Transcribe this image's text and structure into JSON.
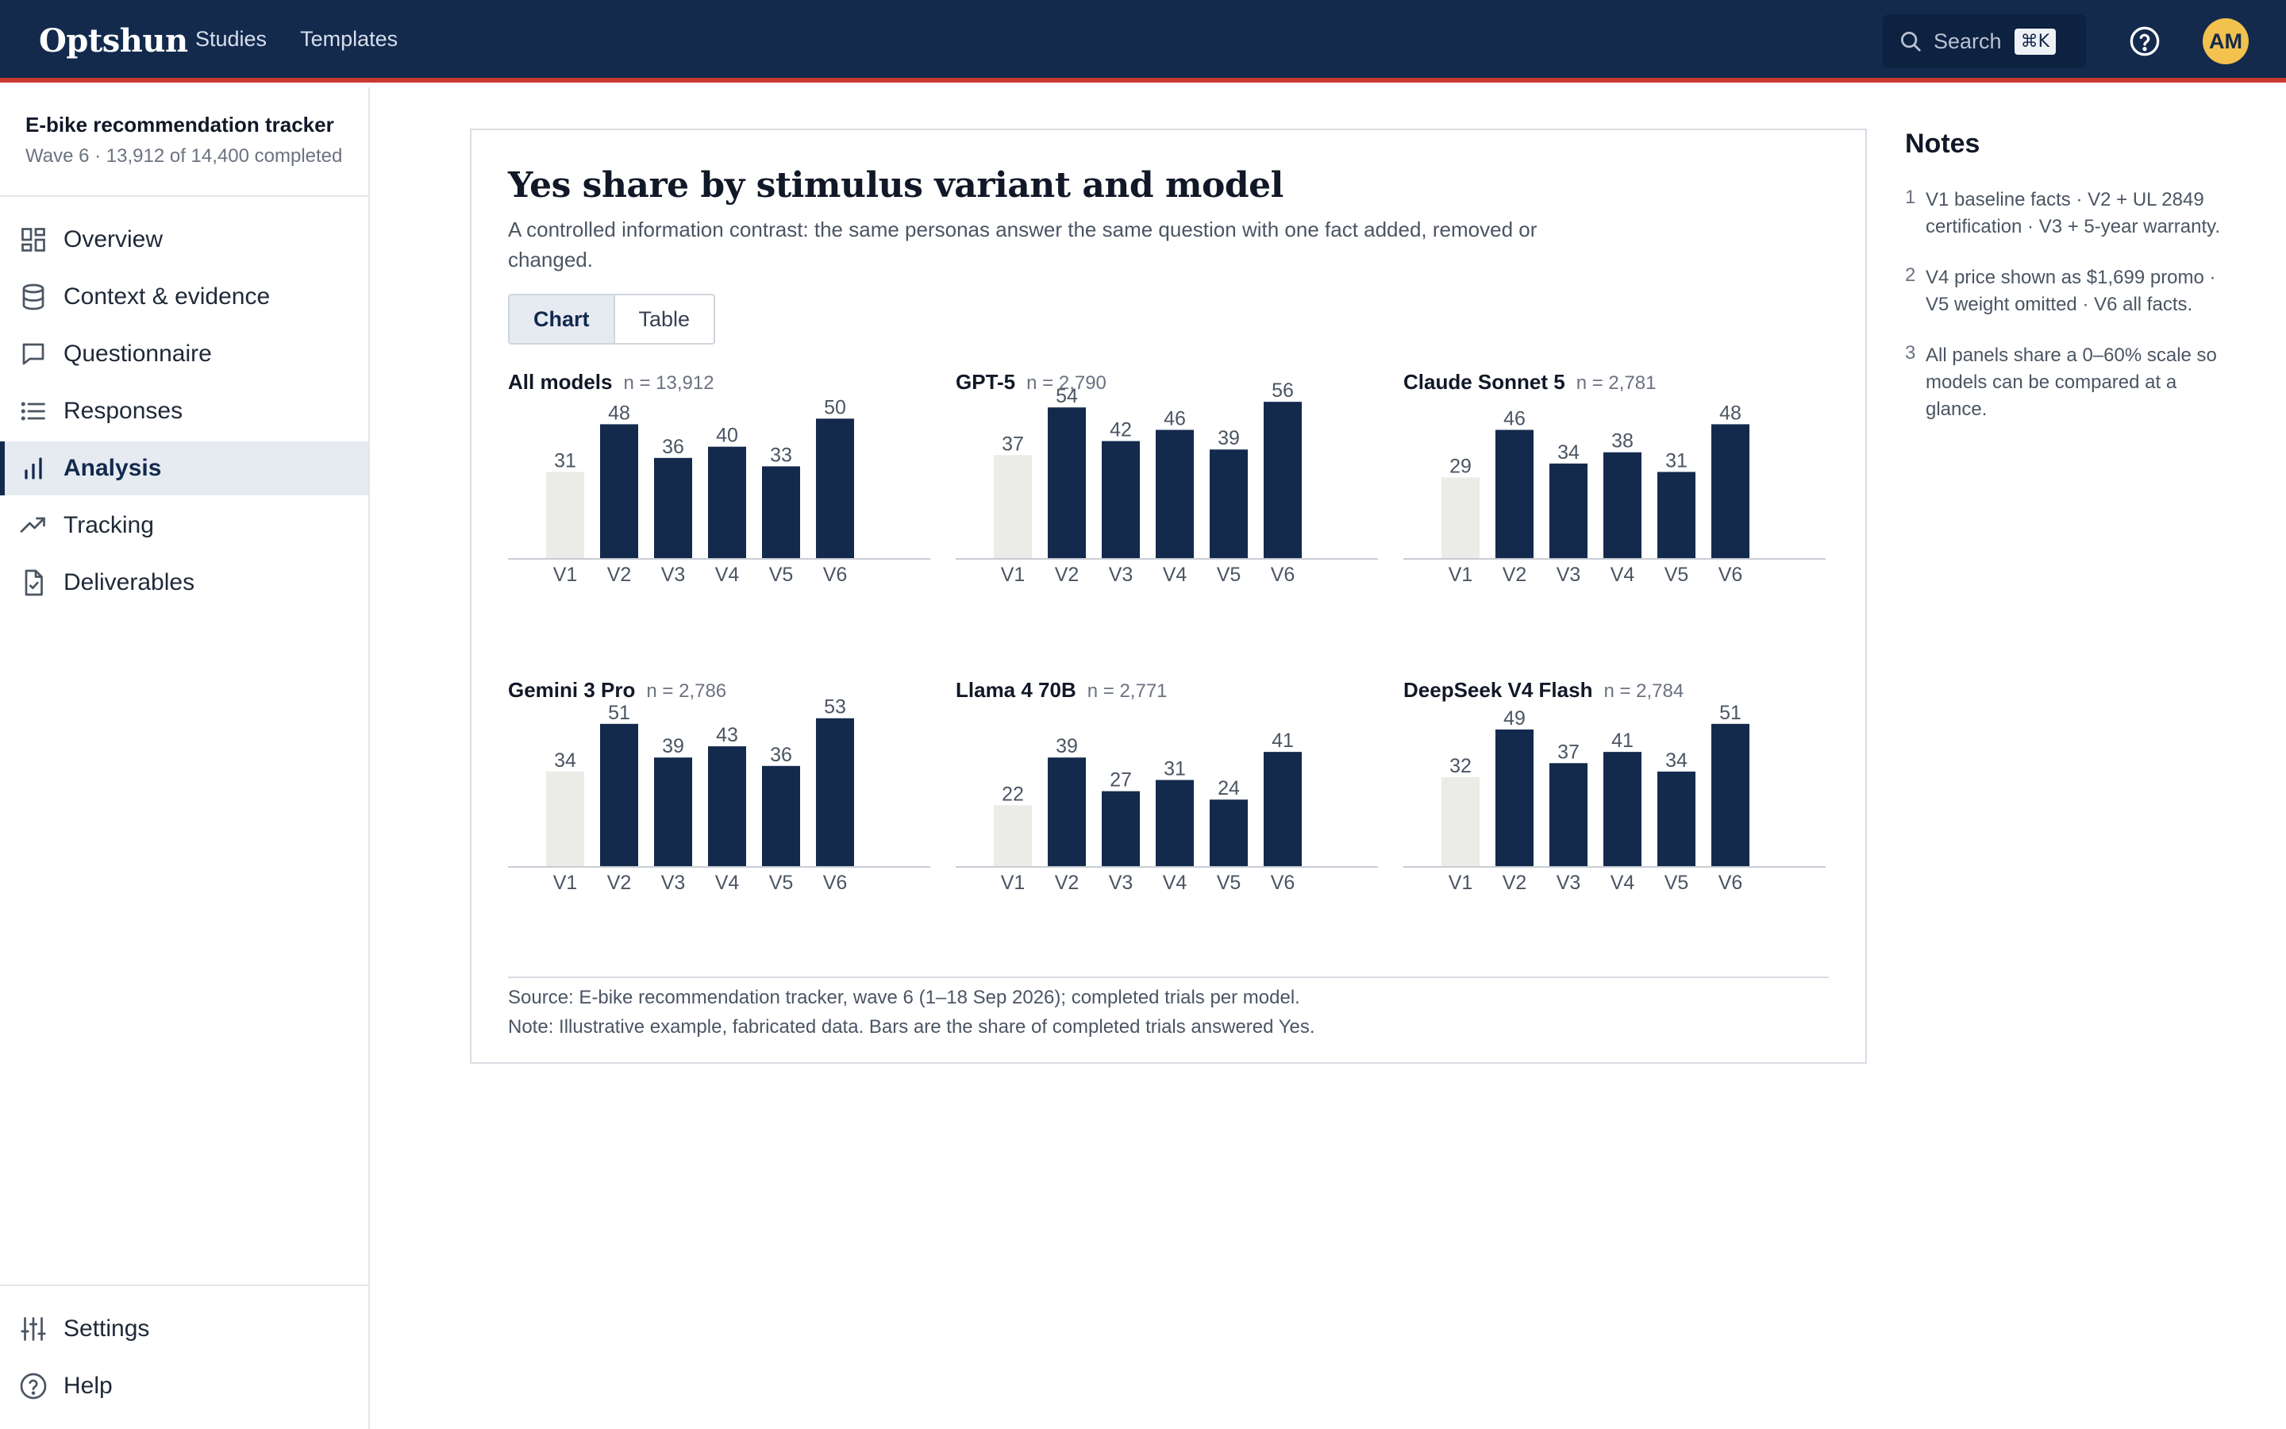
{
  "app": {
    "brand": "Optshun",
    "nav": [
      "Studies",
      "Templates"
    ],
    "search_label": "Search",
    "search_shortcut": "⌘K",
    "avatar_initials": "AM"
  },
  "sidebar": {
    "study_title": "E-bike recommendation tracker",
    "study_subtitle": "Wave 6 · 13,912 of 14,400 completed",
    "items": [
      {
        "label": "Overview",
        "icon": "grid-icon",
        "active": false
      },
      {
        "label": "Context & evidence",
        "icon": "database-icon",
        "active": false
      },
      {
        "label": "Questionnaire",
        "icon": "message-icon",
        "active": false
      },
      {
        "label": "Responses",
        "icon": "list-icon",
        "active": false
      },
      {
        "label": "Analysis",
        "icon": "bar-chart-icon",
        "active": true
      },
      {
        "label": "Tracking",
        "icon": "trend-icon",
        "active": false
      },
      {
        "label": "Deliverables",
        "icon": "file-check-icon",
        "active": false
      }
    ],
    "bottom_items": [
      {
        "label": "Settings",
        "icon": "sliders-icon"
      },
      {
        "label": "Help",
        "icon": "help-icon"
      }
    ]
  },
  "card": {
    "title": "Yes share by stimulus variant and model",
    "subtitle": "A controlled information contrast: the same personas answer the same question with one fact added, removed or changed.",
    "toggle": [
      "Chart",
      "Table"
    ],
    "toggle_active": "Chart",
    "source": "Source: E-bike recommendation tracker, wave 6 (1–18 Sep 2026); completed trials per model.",
    "note": "Note: Illustrative example, fabricated data. Bars are the share of completed trials answered Yes."
  },
  "colors": {
    "bar": "#132a4d",
    "baseline_bar": "#ebebe8",
    "accent_red": "#c8392f"
  },
  "chart_data": [
    {
      "type": "bar",
      "title": "All models",
      "n_label": "n = 13,912",
      "categories": [
        "V1",
        "V2",
        "V3",
        "V4",
        "V5",
        "V6"
      ],
      "values": [
        31,
        48,
        36,
        40,
        33,
        50
      ],
      "ylim": [
        0,
        60
      ]
    },
    {
      "type": "bar",
      "title": "GPT-5",
      "n_label": "n = 2,790",
      "categories": [
        "V1",
        "V2",
        "V3",
        "V4",
        "V5",
        "V6"
      ],
      "values": [
        37,
        54,
        42,
        46,
        39,
        56
      ],
      "ylim": [
        0,
        60
      ]
    },
    {
      "type": "bar",
      "title": "Claude Sonnet 5",
      "n_label": "n = 2,781",
      "categories": [
        "V1",
        "V2",
        "V3",
        "V4",
        "V5",
        "V6"
      ],
      "values": [
        29,
        46,
        34,
        38,
        31,
        48
      ],
      "ylim": [
        0,
        60
      ]
    },
    {
      "type": "bar",
      "title": "Gemini 3 Pro",
      "n_label": "n = 2,786",
      "categories": [
        "V1",
        "V2",
        "V3",
        "V4",
        "V5",
        "V6"
      ],
      "values": [
        34,
        51,
        39,
        43,
        36,
        53
      ],
      "ylim": [
        0,
        60
      ]
    },
    {
      "type": "bar",
      "title": "Llama 4 70B",
      "n_label": "n = 2,771",
      "categories": [
        "V1",
        "V2",
        "V3",
        "V4",
        "V5",
        "V6"
      ],
      "values": [
        22,
        39,
        27,
        31,
        24,
        41
      ],
      "ylim": [
        0,
        60
      ]
    },
    {
      "type": "bar",
      "title": "DeepSeek V4 Flash",
      "n_label": "n = 2,784",
      "categories": [
        "V1",
        "V2",
        "V3",
        "V4",
        "V5",
        "V6"
      ],
      "values": [
        32,
        49,
        37,
        41,
        34,
        51
      ],
      "ylim": [
        0,
        60
      ]
    }
  ],
  "notes": {
    "title": "Notes",
    "items": [
      {
        "num": "1",
        "text": "V1 baseline facts · V2 + UL 2849 certification · V3 + 5-year warranty."
      },
      {
        "num": "2",
        "text": "V4 price shown as $1,699 promo · V5 weight omitted · V6 all facts."
      },
      {
        "num": "3",
        "text": "All panels share a 0–60% scale so models can be compared at a glance."
      }
    ]
  }
}
